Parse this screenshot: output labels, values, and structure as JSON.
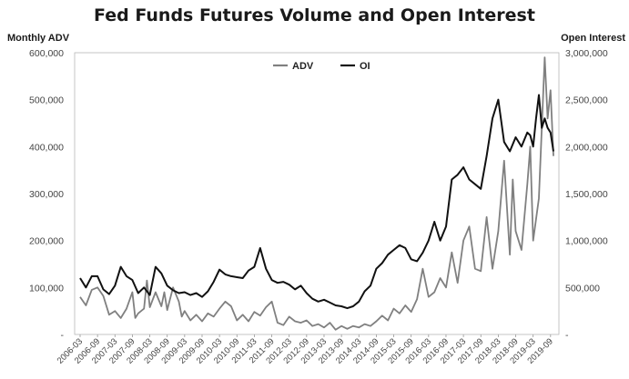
{
  "chart_data": {
    "type": "line",
    "title": "Fed Funds Futures Volume and Open Interest",
    "ylabel": "Monthly ADV",
    "y2label": "Open Interest",
    "ylim": [
      0,
      600000
    ],
    "y2lim": [
      0,
      3000000
    ],
    "yticks": [
      "-",
      "100,000",
      "200,000",
      "300,000",
      "400,000",
      "500,000",
      "600,000"
    ],
    "y2ticks": [
      "-",
      "500,000",
      "1,000,000",
      "1,500,000",
      "2,000,000",
      "2,500,000",
      "3,000,000"
    ],
    "xticks": [
      "2006-03",
      "2006-09",
      "2007-03",
      "2007-09",
      "2008-03",
      "2008-09",
      "2009-03",
      "2009-09",
      "2010-03",
      "2010-09",
      "2011-03",
      "2011-09",
      "2012-03",
      "2012-09",
      "2013-03",
      "2013-09",
      "2014-03",
      "2014-09",
      "2015-03",
      "2015-09",
      "2016-03",
      "2016-09",
      "2017-03",
      "2017-09",
      "2018-03",
      "2018-09",
      "2019-03",
      "2019-09"
    ],
    "grid": false,
    "legend_position": "top-center",
    "series": [
      {
        "name": "ADV",
        "axis": "left",
        "color": "#808080",
        "points": [
          [
            "2006-03",
            80000
          ],
          [
            "2006-05",
            62000
          ],
          [
            "2006-07",
            95000
          ],
          [
            "2006-09",
            100000
          ],
          [
            "2006-11",
            82000
          ],
          [
            "2007-01",
            42000
          ],
          [
            "2007-03",
            50000
          ],
          [
            "2007-05",
            35000
          ],
          [
            "2007-07",
            55000
          ],
          [
            "2007-09",
            90000
          ],
          [
            "2007-10",
            35000
          ],
          [
            "2007-11",
            45000
          ],
          [
            "2008-01",
            55000
          ],
          [
            "2008-02",
            115000
          ],
          [
            "2008-03",
            58000
          ],
          [
            "2008-05",
            90000
          ],
          [
            "2008-07",
            60000
          ],
          [
            "2008-08",
            90000
          ],
          [
            "2008-09",
            52000
          ],
          [
            "2008-11",
            100000
          ],
          [
            "2009-01",
            70000
          ],
          [
            "2009-02",
            38000
          ],
          [
            "2009-03",
            50000
          ],
          [
            "2009-05",
            30000
          ],
          [
            "2009-07",
            42000
          ],
          [
            "2009-09",
            28000
          ],
          [
            "2009-11",
            45000
          ],
          [
            "2010-01",
            38000
          ],
          [
            "2010-03",
            55000
          ],
          [
            "2010-05",
            70000
          ],
          [
            "2010-07",
            60000
          ],
          [
            "2010-09",
            30000
          ],
          [
            "2010-11",
            42000
          ],
          [
            "2011-01",
            28000
          ],
          [
            "2011-03",
            48000
          ],
          [
            "2011-05",
            40000
          ],
          [
            "2011-07",
            58000
          ],
          [
            "2011-09",
            70000
          ],
          [
            "2011-11",
            25000
          ],
          [
            "2012-01",
            20000
          ],
          [
            "2012-03",
            38000
          ],
          [
            "2012-05",
            28000
          ],
          [
            "2012-07",
            25000
          ],
          [
            "2012-09",
            30000
          ],
          [
            "2012-11",
            18000
          ],
          [
            "2013-01",
            22000
          ],
          [
            "2013-03",
            15000
          ],
          [
            "2013-05",
            25000
          ],
          [
            "2013-07",
            10000
          ],
          [
            "2013-09",
            18000
          ],
          [
            "2013-11",
            12000
          ],
          [
            "2014-01",
            18000
          ],
          [
            "2014-03",
            15000
          ],
          [
            "2014-05",
            22000
          ],
          [
            "2014-07",
            18000
          ],
          [
            "2014-09",
            28000
          ],
          [
            "2014-11",
            40000
          ],
          [
            "2015-01",
            30000
          ],
          [
            "2015-03",
            55000
          ],
          [
            "2015-05",
            45000
          ],
          [
            "2015-07",
            62000
          ],
          [
            "2015-09",
            48000
          ],
          [
            "2015-11",
            75000
          ],
          [
            "2016-01",
            140000
          ],
          [
            "2016-03",
            80000
          ],
          [
            "2016-05",
            90000
          ],
          [
            "2016-07",
            120000
          ],
          [
            "2016-09",
            100000
          ],
          [
            "2016-11",
            175000
          ],
          [
            "2017-01",
            110000
          ],
          [
            "2017-03",
            200000
          ],
          [
            "2017-05",
            230000
          ],
          [
            "2017-07",
            140000
          ],
          [
            "2017-09",
            135000
          ],
          [
            "2017-11",
            250000
          ],
          [
            "2018-01",
            140000
          ],
          [
            "2018-03",
            220000
          ],
          [
            "2018-05",
            370000
          ],
          [
            "2018-07",
            170000
          ],
          [
            "2018-08",
            330000
          ],
          [
            "2018-09",
            220000
          ],
          [
            "2018-11",
            180000
          ],
          [
            "2019-01",
            320000
          ],
          [
            "2019-02",
            400000
          ],
          [
            "2019-03",
            200000
          ],
          [
            "2019-05",
            290000
          ],
          [
            "2019-07",
            590000
          ],
          [
            "2019-08",
            460000
          ],
          [
            "2019-09",
            520000
          ],
          [
            "2019-10",
            380000
          ]
        ]
      },
      {
        "name": "OI",
        "axis": "right",
        "color": "#111111",
        "points": [
          [
            "2006-03",
            600000
          ],
          [
            "2006-05",
            500000
          ],
          [
            "2006-07",
            620000
          ],
          [
            "2006-09",
            620000
          ],
          [
            "2006-11",
            480000
          ],
          [
            "2007-01",
            430000
          ],
          [
            "2007-03",
            520000
          ],
          [
            "2007-05",
            720000
          ],
          [
            "2007-07",
            620000
          ],
          [
            "2007-09",
            580000
          ],
          [
            "2007-11",
            440000
          ],
          [
            "2008-01",
            500000
          ],
          [
            "2008-03",
            420000
          ],
          [
            "2008-05",
            720000
          ],
          [
            "2008-07",
            650000
          ],
          [
            "2008-09",
            520000
          ],
          [
            "2008-11",
            470000
          ],
          [
            "2009-01",
            440000
          ],
          [
            "2009-03",
            450000
          ],
          [
            "2009-05",
            420000
          ],
          [
            "2009-07",
            440000
          ],
          [
            "2009-09",
            400000
          ],
          [
            "2009-11",
            460000
          ],
          [
            "2010-01",
            560000
          ],
          [
            "2010-03",
            690000
          ],
          [
            "2010-05",
            640000
          ],
          [
            "2010-07",
            620000
          ],
          [
            "2010-09",
            610000
          ],
          [
            "2010-11",
            600000
          ],
          [
            "2011-01",
            680000
          ],
          [
            "2011-03",
            720000
          ],
          [
            "2011-05",
            920000
          ],
          [
            "2011-07",
            700000
          ],
          [
            "2011-09",
            580000
          ],
          [
            "2011-11",
            550000
          ],
          [
            "2012-01",
            560000
          ],
          [
            "2012-03",
            530000
          ],
          [
            "2012-05",
            480000
          ],
          [
            "2012-07",
            520000
          ],
          [
            "2012-09",
            440000
          ],
          [
            "2012-11",
            380000
          ],
          [
            "2013-01",
            350000
          ],
          [
            "2013-03",
            370000
          ],
          [
            "2013-05",
            340000
          ],
          [
            "2013-07",
            310000
          ],
          [
            "2013-09",
            300000
          ],
          [
            "2013-11",
            280000
          ],
          [
            "2014-01",
            300000
          ],
          [
            "2014-03",
            350000
          ],
          [
            "2014-05",
            460000
          ],
          [
            "2014-07",
            520000
          ],
          [
            "2014-09",
            700000
          ],
          [
            "2014-11",
            760000
          ],
          [
            "2015-01",
            850000
          ],
          [
            "2015-03",
            900000
          ],
          [
            "2015-05",
            950000
          ],
          [
            "2015-07",
            920000
          ],
          [
            "2015-09",
            800000
          ],
          [
            "2015-11",
            780000
          ],
          [
            "2016-01",
            870000
          ],
          [
            "2016-03",
            1000000
          ],
          [
            "2016-05",
            1200000
          ],
          [
            "2016-07",
            1000000
          ],
          [
            "2016-09",
            1150000
          ],
          [
            "2016-11",
            1650000
          ],
          [
            "2017-01",
            1700000
          ],
          [
            "2017-03",
            1780000
          ],
          [
            "2017-05",
            1650000
          ],
          [
            "2017-07",
            1600000
          ],
          [
            "2017-09",
            1550000
          ],
          [
            "2017-11",
            1900000
          ],
          [
            "2018-01",
            2300000
          ],
          [
            "2018-03",
            2500000
          ],
          [
            "2018-05",
            2050000
          ],
          [
            "2018-07",
            1950000
          ],
          [
            "2018-09",
            2100000
          ],
          [
            "2018-11",
            2000000
          ],
          [
            "2019-01",
            2150000
          ],
          [
            "2019-02",
            2120000
          ],
          [
            "2019-03",
            2000000
          ],
          [
            "2019-04",
            2300000
          ],
          [
            "2019-05",
            2550000
          ],
          [
            "2019-06",
            2200000
          ],
          [
            "2019-07",
            2300000
          ],
          [
            "2019-08",
            2200000
          ],
          [
            "2019-09",
            2150000
          ],
          [
            "2019-10",
            1950000
          ]
        ]
      }
    ]
  }
}
